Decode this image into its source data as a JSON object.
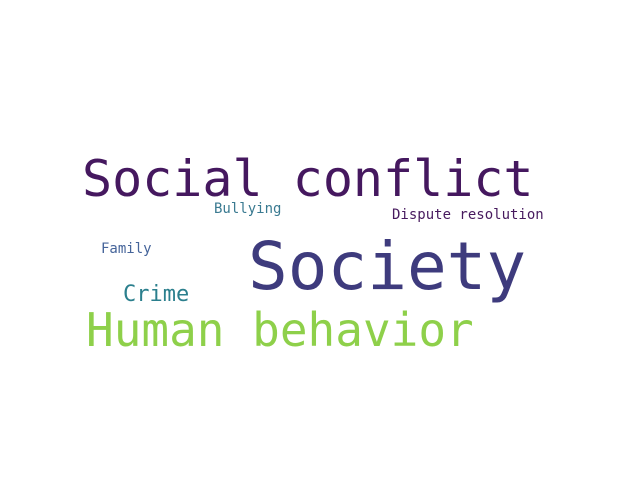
{
  "word_cloud": {
    "words": [
      {
        "id": "social-conflict",
        "text": "Social conflict",
        "color": "#45185f"
      },
      {
        "id": "bullying",
        "text": "Bullying",
        "color": "#3a7a91"
      },
      {
        "id": "dispute-resolution",
        "text": "Dispute resolution",
        "color": "#471a5e"
      },
      {
        "id": "family",
        "text": "Family",
        "color": "#45649a"
      },
      {
        "id": "society",
        "text": "Society",
        "color": "#3e3b7d"
      },
      {
        "id": "crime",
        "text": "Crime",
        "color": "#2b7f8d"
      },
      {
        "id": "human-behavior",
        "text": "Human behavior",
        "color": "#8ed04a"
      }
    ]
  }
}
